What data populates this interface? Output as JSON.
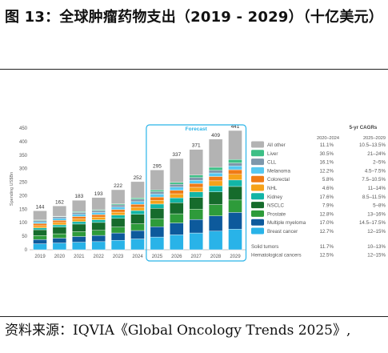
{
  "page": {
    "title": "图 13：全球肿瘤药物支出（2019 - 2029）（十亿美元）",
    "source": "资料来源：IQVIA《Global Oncology Trends 2025》,"
  },
  "chart_data": {
    "type": "bar",
    "stacked": true,
    "ylabel": "Spending US$Bn",
    "ylim": [
      0,
      450
    ],
    "yticks": [
      0,
      50,
      100,
      150,
      200,
      250,
      300,
      350,
      400,
      450
    ],
    "grid": false,
    "categories": [
      "2019",
      "2020",
      "2021",
      "2022",
      "2023",
      "2024",
      "2025",
      "2026",
      "2027",
      "2028",
      "2029"
    ],
    "totals": [
      144,
      162,
      183,
      193,
      222,
      252,
      295,
      337,
      371,
      409,
      441
    ],
    "forecast_label": "Forecast",
    "forecast_categories": [
      "2025",
      "2026",
      "2027",
      "2028",
      "2029"
    ],
    "legend_header": {
      "title": "5-yr CAGRs",
      "col1": "2020–2024",
      "col2": "2025–2029"
    },
    "series": [
      {
        "name": "Breast cancer",
        "color": "#29b3e8",
        "cagr_hist": "12.7%",
        "cagr_fcst": "12–15%",
        "values": [
          22,
          25,
          28,
          30,
          35,
          40,
          47,
          55,
          62,
          69,
          76
        ]
      },
      {
        "name": "Multiple myeloma",
        "color": "#0d5a9c",
        "cagr_hist": "17.0%",
        "cagr_fcst": "14.5–17.5%",
        "values": [
          16,
          18,
          21,
          23,
          27,
          31,
          38,
          44,
          50,
          56,
          62
        ]
      },
      {
        "name": "Prostate",
        "color": "#2e9b3a",
        "cagr_hist": "12.8%",
        "cagr_fcst": "13–16%",
        "values": [
          14,
          16,
          18,
          19,
          22,
          25,
          30,
          34,
          38,
          42,
          46
        ]
      },
      {
        "name": "NSCLC",
        "color": "#166b2c",
        "cagr_hist": "7.9%",
        "cagr_fcst": "5–8%",
        "values": [
          22,
          25,
          28,
          29,
          32,
          35,
          38,
          41,
          44,
          47,
          50
        ]
      },
      {
        "name": "Kidney",
        "color": "#12b5a6",
        "cagr_hist": "17.6%",
        "cagr_fcst": "8.5–11.5%",
        "values": [
          7,
          8,
          9,
          10,
          12,
          14,
          16,
          18,
          20,
          22,
          24
        ]
      },
      {
        "name": "NHL",
        "color": "#f6a21a",
        "cagr_hist": "4.6%",
        "cagr_fcst": "11–14%",
        "values": [
          8,
          9,
          10,
          10,
          11,
          12,
          14,
          15,
          17,
          19,
          21
        ]
      },
      {
        "name": "Colorectal",
        "color": "#f07b16",
        "cagr_hist": "5.8%",
        "cagr_fcst": "7.5–10.5%",
        "values": [
          8,
          8,
          9,
          9,
          10,
          11,
          12,
          13,
          14,
          16,
          17
        ]
      },
      {
        "name": "Melanoma",
        "color": "#56c8f0",
        "cagr_hist": "12.2%",
        "cagr_fcst": "4.5–7.5%",
        "values": [
          6,
          7,
          8,
          8,
          9,
          10,
          11,
          12,
          12,
          13,
          14
        ]
      },
      {
        "name": "CLL",
        "color": "#7e97ab",
        "cagr_hist": "16.1%",
        "cagr_fcst": "2–5%",
        "values": [
          5,
          6,
          7,
          7,
          8,
          9,
          9,
          10,
          10,
          10,
          11
        ]
      },
      {
        "name": "Liver",
        "color": "#3dbf86",
        "cagr_hist": "30.5%",
        "cagr_fcst": "21–24%",
        "values": [
          2,
          2,
          3,
          3,
          4,
          5,
          6,
          7,
          9,
          11,
          13
        ]
      },
      {
        "name": "All other",
        "color": "#b3b3b3",
        "cagr_hist": "11.1%",
        "cagr_fcst": "10.5–13.5%",
        "values": [
          34,
          38,
          42,
          45,
          52,
          60,
          74,
          88,
          95,
          104,
          107
        ]
      }
    ],
    "legend_extra": [
      {
        "name": "Solid tumors",
        "cagr_hist": "11.7%",
        "cagr_fcst": "10–13%"
      },
      {
        "name": "Hematological cancers",
        "cagr_hist": "12.5%",
        "cagr_fcst": "12–15%"
      }
    ]
  }
}
